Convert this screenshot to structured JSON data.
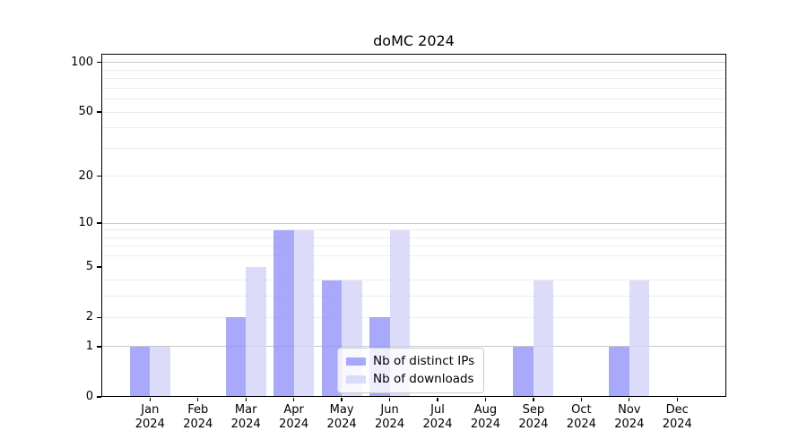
{
  "chart_data": {
    "type": "bar",
    "title": "doMC 2024",
    "categories": [
      "Jan 2024",
      "Feb 2024",
      "Mar 2024",
      "Apr 2024",
      "May 2024",
      "Jun 2024",
      "Jul 2024",
      "Aug 2024",
      "Sep 2024",
      "Oct 2024",
      "Nov 2024",
      "Dec 2024"
    ],
    "series": [
      {
        "name": "Nb of distinct IPs",
        "color": "#8c8cfa",
        "alpha": 0.75,
        "values": [
          1,
          0,
          2,
          9,
          4,
          2,
          0,
          0,
          1,
          0,
          1,
          0
        ]
      },
      {
        "name": "Nb of downloads",
        "color": "#d0d0f8",
        "alpha": 0.75,
        "values": [
          1,
          0,
          5,
          9,
          4,
          9,
          0,
          0,
          4,
          0,
          4,
          0
        ]
      }
    ],
    "xlabel": "",
    "ylabel": "",
    "y_axis": {
      "scale": "log10(x+1)",
      "ylim": [
        0,
        113
      ],
      "ticks": [
        0,
        1,
        2,
        5,
        10,
        20,
        50,
        100
      ],
      "major_gridlines": [
        1,
        10,
        100
      ],
      "minor_gridlines": [
        2,
        3,
        4,
        6,
        7,
        8,
        9,
        20,
        30,
        40,
        50,
        60,
        70,
        80,
        90
      ]
    },
    "grid": true,
    "legend_position": "lower center"
  },
  "colors": {
    "axis": "#000000",
    "major_grid": "#c9c9c9",
    "minor_grid": "#ececec",
    "legend_border": "#cccccc",
    "legend_background": "#ffffff"
  }
}
